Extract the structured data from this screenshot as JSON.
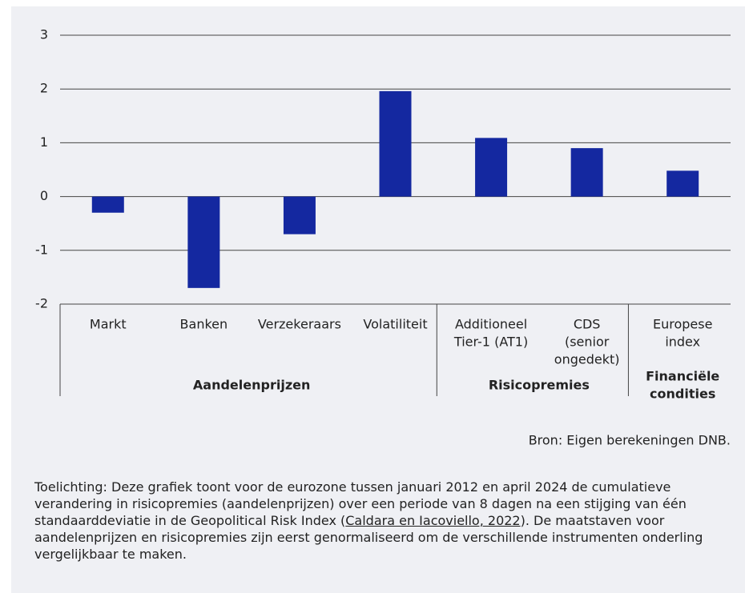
{
  "chart_data": {
    "type": "bar",
    "color": "#1428a0",
    "ylim": [
      -2,
      3
    ],
    "yticks": [
      -2,
      -1,
      0,
      1,
      2,
      3
    ],
    "grid": true,
    "groups": [
      {
        "name": [
          "Aandelenprijzen"
        ],
        "categories": [
          [
            "Markt"
          ],
          [
            "Banken"
          ],
          [
            "Verzekeraars"
          ],
          [
            "Volatiliteit"
          ]
        ],
        "values": [
          -0.3,
          -1.7,
          -0.7,
          1.96
        ]
      },
      {
        "name": [
          "Risicopremies"
        ],
        "categories": [
          [
            "Additioneel",
            "Tier-1 (AT1)"
          ],
          [
            "CDS",
            "(senior",
            "ongedekt)"
          ]
        ],
        "values": [
          1.09,
          0.9
        ]
      },
      {
        "name": [
          "Financiële",
          "condities"
        ],
        "categories": [
          [
            "Europese",
            "index"
          ]
        ],
        "values": [
          0.48
        ]
      }
    ],
    "source": "Bron: Eigen berekeningen DNB.",
    "note": [
      "Toelichting: Deze grafiek toont voor de eurozone tussen januari 2012 en april 2024 de cumulatieve verandering in risicopremies (aandelenprijzen) over een periode van 8 dagen na een stijging van één standaarddeviatie in de Geopolitical Risk Index (",
      "Caldara en Iacoviello, 2022",
      "). De maatstaven voor aandelenprijzen en risicopremies zijn eerst genormaliseerd om de verschillende instrumenten onderling vergelijkbaar te maken."
    ]
  }
}
